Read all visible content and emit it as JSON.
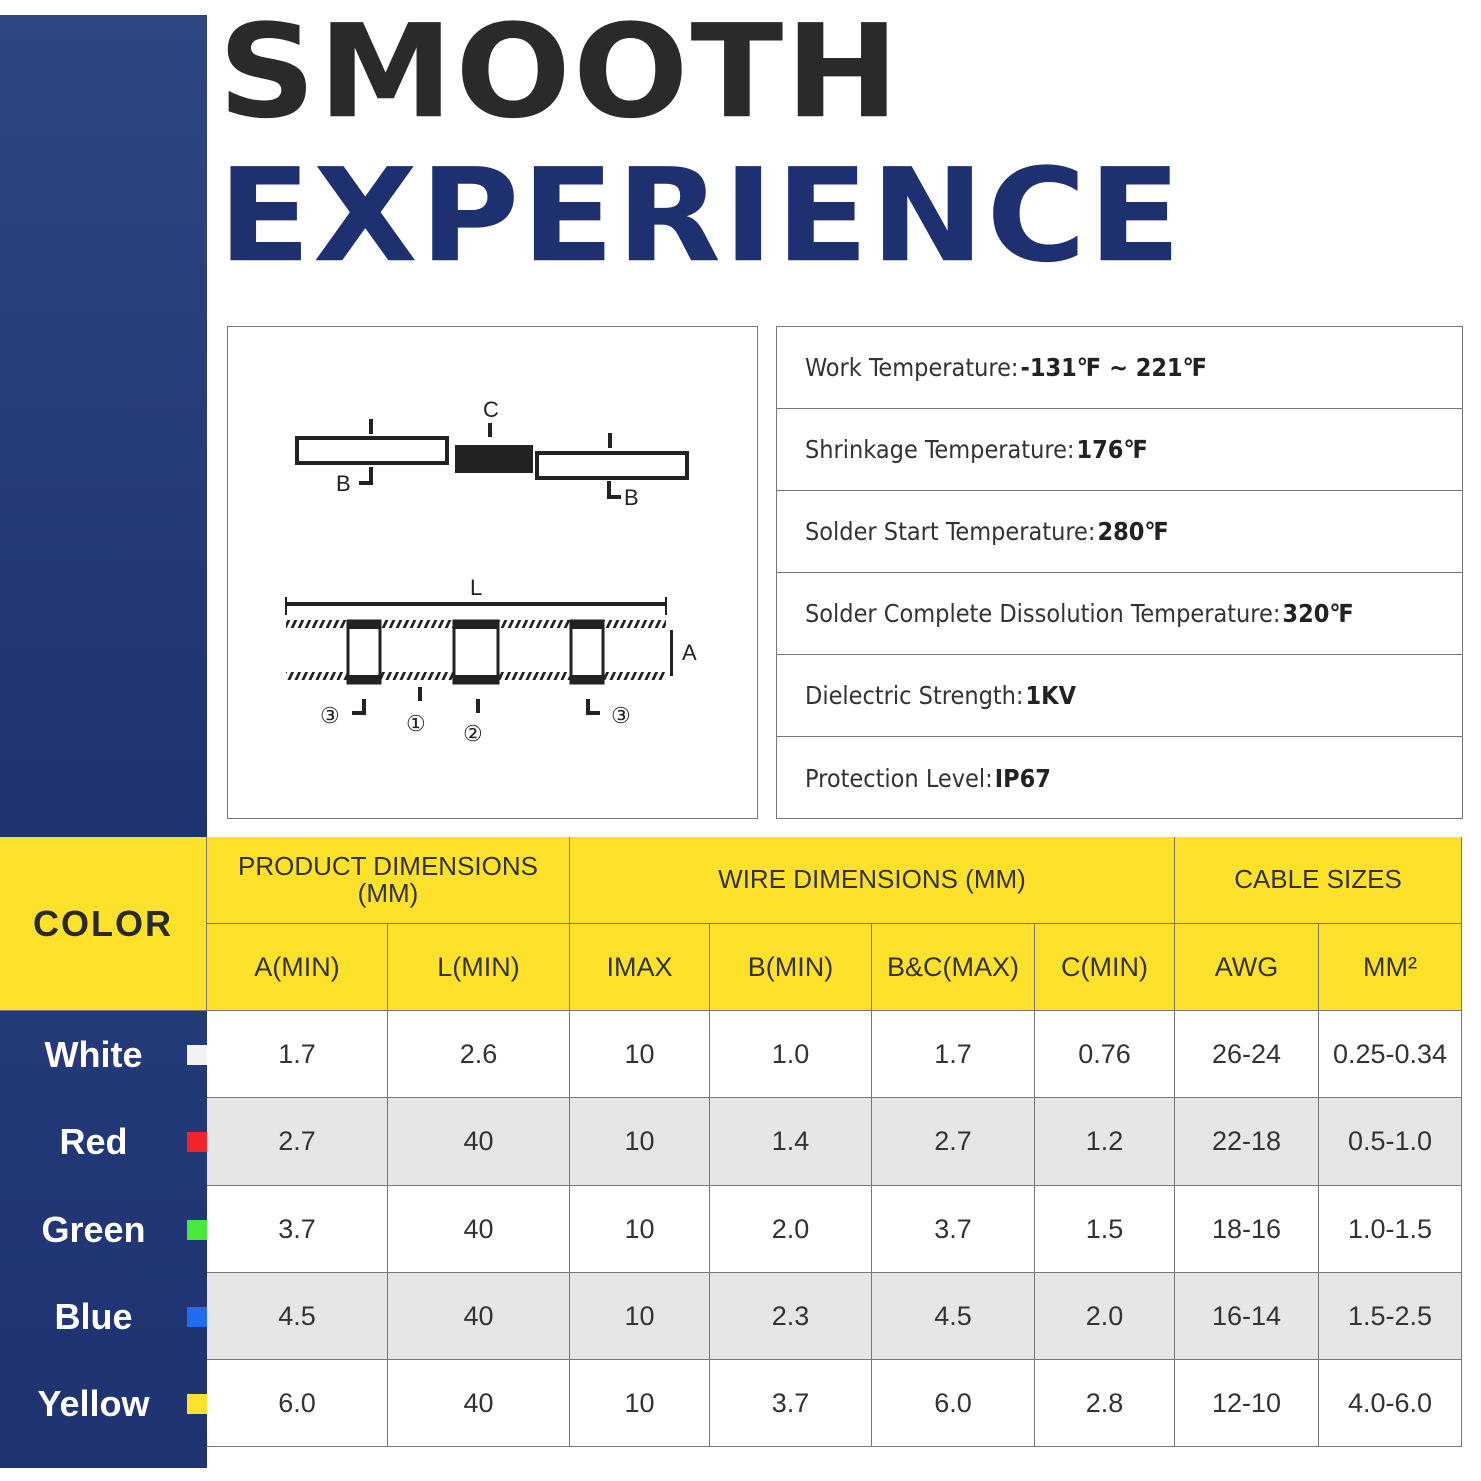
{
  "title": {
    "line1": "SMOOTH",
    "line2": "EXPERIENCE"
  },
  "diagram": {
    "labels": {
      "c": "C",
      "b": "B",
      "l": "L",
      "a": "A",
      "n1": "①",
      "n2": "②",
      "n3": "③"
    }
  },
  "specs": [
    {
      "label": "Work Temperature: ",
      "value": "-131℉ ~ 221℉"
    },
    {
      "label": "Shrinkage Temperature:",
      "value": "176℉"
    },
    {
      "label": "Solder Start Temperature:",
      "value": "280℉"
    },
    {
      "label": "Solder Complete Dissolution Temperature:",
      "value": "320℉"
    },
    {
      "label": "Dielectric Strength:",
      "value": "1KV"
    },
    {
      "label": "Protection Level:",
      "value": "IP67"
    }
  ],
  "table": {
    "color_header": "COLOR",
    "groups": [
      "PRODUCT DIMENSIONS (MM)",
      "WIRE DIMENSIONS (MM)",
      "CABLE SIZES"
    ],
    "columns": [
      "A(MIN)",
      "L(MIN)",
      "IMAX",
      "B(MIN)",
      "B&C(MAX)",
      "C(MIN)",
      "AWG",
      "MM²"
    ],
    "rows": [
      {
        "color": "White",
        "swatch": "#f2f2f2",
        "values": [
          "1.7",
          "2.6",
          "10",
          "1.0",
          "1.7",
          "0.76",
          "26-24",
          "0.25-0.34"
        ]
      },
      {
        "color": "Red",
        "swatch": "#f0242a",
        "values": [
          "2.7",
          "40",
          "10",
          "1.4",
          "2.7",
          "1.2",
          "22-18",
          "0.5-1.0"
        ]
      },
      {
        "color": "Green",
        "swatch": "#49e83a",
        "values": [
          "3.7",
          "40",
          "10",
          "2.0",
          "3.7",
          "1.5",
          "18-16",
          "1.0-1.5"
        ]
      },
      {
        "color": "Blue",
        "swatch": "#1f6ef0",
        "values": [
          "4.5",
          "40",
          "10",
          "2.3",
          "4.5",
          "2.0",
          "16-14",
          "1.5-2.5"
        ]
      },
      {
        "color": "Yellow",
        "swatch": "#fde12a",
        "values": [
          "6.0",
          "40",
          "10",
          "3.7",
          "6.0",
          "2.8",
          "12-10",
          "4.0-6.0"
        ]
      }
    ]
  },
  "colors": {
    "navy": "#1f3272",
    "yellow": "#fde12a",
    "row_alt": "#e6e6e6"
  }
}
